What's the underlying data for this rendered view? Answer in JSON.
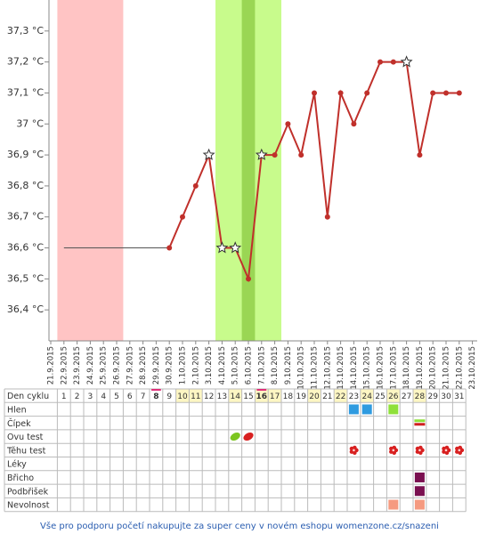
{
  "chart_data": {
    "type": "line",
    "categories": [
      "21.9.2015",
      "22.9.2015",
      "23.9.2015",
      "24.9.2015",
      "25.9.2015",
      "26.9.2015",
      "27.9.2015",
      "28.9.2015",
      "29.9.2015",
      "30.9.2015",
      "1.10.2015",
      "2.10.2015",
      "3.10.2015",
      "4.10.2015",
      "5.10.2015",
      "6.10.2015",
      "7.10.2015",
      "8.10.2015",
      "9.10.2015",
      "10.10.2015",
      "11.10.2015",
      "12.10.2015",
      "13.10.2015",
      "14.10.2015",
      "15.10.2015",
      "16.10.2015",
      "17.10.2015",
      "18.10.2015",
      "19.10.2015",
      "20.10.2015",
      "21.10.2015",
      "22.10.2015",
      "23.10.2015"
    ],
    "series": [
      {
        "color": "#c0302b",
        "width": 2,
        "values": [
          null,
          null,
          null,
          null,
          null,
          null,
          null,
          null,
          null,
          36.6,
          36.7,
          36.8,
          36.9,
          36.6,
          36.6,
          36.5,
          36.9,
          36.9,
          37.0,
          36.9,
          37.1,
          36.7,
          37.1,
          37.0,
          37.1,
          37.2,
          37.2,
          37.2,
          36.9,
          37.1,
          37.1,
          37.1,
          null
        ],
        "markers": [
          null,
          null,
          null,
          null,
          null,
          null,
          null,
          null,
          null,
          "dot",
          "dot",
          "dot",
          "star",
          "star",
          "star",
          "dot",
          "star",
          "dot",
          "dot",
          "dot",
          "dot",
          "dot",
          "dot",
          "dot",
          "dot",
          "dot",
          "dot",
          "star",
          "dot",
          "dot",
          "dot",
          "dot",
          null
        ]
      },
      {
        "color": "#555555",
        "width": 1,
        "values": [
          null,
          36.6,
          36.6,
          36.6,
          36.6,
          36.6,
          36.6,
          36.6,
          36.6,
          36.6,
          null,
          null,
          null,
          null,
          null,
          null,
          null,
          null,
          null,
          null,
          null,
          null,
          null,
          null,
          null,
          null,
          null,
          null,
          null,
          null,
          null,
          null,
          null
        ]
      }
    ],
    "bands": [
      {
        "from": "22.9.2015",
        "to": "26.9.2015",
        "color": "#ffc4c4"
      },
      {
        "from": "4.10.2015",
        "to": "8.10.2015",
        "color": "#c8fb8c"
      },
      {
        "from": "6.10.2015",
        "to": "6.10.2015",
        "color": "#9ad654"
      }
    ],
    "ylim": [
      36.3,
      37.4
    ],
    "yticks": [
      {
        "value": 36.4,
        "label": "36,4 °C"
      },
      {
        "value": 36.5,
        "label": "36,5 °C"
      },
      {
        "value": 36.6,
        "label": "36,6 °C"
      },
      {
        "value": 36.7,
        "label": "36,7 °C"
      },
      {
        "value": 36.8,
        "label": "36,8 °C"
      },
      {
        "value": 36.9,
        "label": "36,9 °C"
      },
      {
        "value": 37,
        "label": "37 °C"
      },
      {
        "value": 37.1,
        "label": "37,1 °C"
      },
      {
        "value": 37.2,
        "label": "37,2 °C"
      },
      {
        "value": 37.3,
        "label": "37,3 °C"
      }
    ]
  },
  "table": {
    "row_labels": [
      "Den cyklu",
      "Hlen",
      "Čípek",
      "Ovu test",
      "Těhu test",
      "Léky",
      "Břicho",
      "Podbřišek",
      "Nevolnost"
    ],
    "days": [
      1,
      2,
      3,
      4,
      5,
      6,
      7,
      8,
      9,
      10,
      11,
      12,
      13,
      14,
      15,
      16,
      17,
      18,
      19,
      20,
      21,
      22,
      23,
      24,
      25,
      26,
      27,
      28,
      29,
      30,
      31
    ],
    "highlight_days": [
      10,
      11,
      14,
      16,
      17,
      20,
      22,
      24,
      26,
      28
    ],
    "bold_days": [
      8,
      16
    ],
    "marks": [
      {
        "row": 1,
        "day": 23,
        "kind": "blue-square"
      },
      {
        "row": 1,
        "day": 24,
        "kind": "blue-square"
      },
      {
        "row": 1,
        "day": 26,
        "kind": "green-square"
      },
      {
        "row": 2,
        "day": 28,
        "kind": "green-red-bar"
      },
      {
        "row": 3,
        "day": 14,
        "kind": "green-leaf"
      },
      {
        "row": 3,
        "day": 15,
        "kind": "red-leaf"
      },
      {
        "row": 4,
        "day": 23,
        "kind": "flower"
      },
      {
        "row": 4,
        "day": 26,
        "kind": "flower"
      },
      {
        "row": 4,
        "day": 28,
        "kind": "flower"
      },
      {
        "row": 4,
        "day": 30,
        "kind": "flower"
      },
      {
        "row": 4,
        "day": 31,
        "kind": "flower"
      },
      {
        "row": 6,
        "day": 28,
        "kind": "purple-square"
      },
      {
        "row": 7,
        "day": 28,
        "kind": "purple-square"
      },
      {
        "row": 8,
        "day": 26,
        "kind": "salmon-square"
      },
      {
        "row": 8,
        "day": 28,
        "kind": "salmon-square"
      }
    ]
  },
  "footer": "Vše pro podporu početí nakupujte za super ceny v novém eshopu womenzone.cz/snazeni"
}
